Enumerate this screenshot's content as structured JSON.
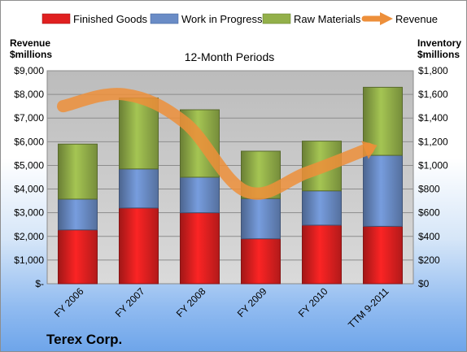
{
  "chart_data": {
    "type": "bar",
    "stacked": true,
    "title": "12-Month Periods",
    "company": "Terex Corp.",
    "left_axis_title": [
      "Revenue",
      "$millions"
    ],
    "right_axis_title": [
      "Inventory",
      "$millions"
    ],
    "categories": [
      "FY 2006",
      "FY 2007",
      "FY 2008",
      "FY 2009",
      "FY 2010",
      "TTM 9-2011"
    ],
    "series": [
      {
        "name": "Finished Goods",
        "axis": "right",
        "color": "#e02020",
        "values": [
          455,
          640,
          600,
          380,
          495,
          485
        ]
      },
      {
        "name": "Work in Progress",
        "axis": "right",
        "color": "#6a8cc6",
        "values": [
          260,
          330,
          300,
          340,
          290,
          600
        ]
      },
      {
        "name": "Raw Materials",
        "axis": "right",
        "color": "#93b04a",
        "values": [
          465,
          600,
          570,
          400,
          420,
          575
        ]
      }
    ],
    "line_series": {
      "name": "Revenue",
      "axis": "left",
      "color": "#ed8f3a",
      "values": [
        7500,
        8000,
        6800,
        3900,
        4700,
        5700
      ]
    },
    "left_ticks": [
      "$-",
      "$1,000",
      "$2,000",
      "$3,000",
      "$4,000",
      "$5,000",
      "$6,000",
      "$7,000",
      "$8,000",
      "$9,000"
    ],
    "right_ticks": [
      "$0",
      "$200",
      "$400",
      "$600",
      "$800",
      "$1,000",
      "$1,200",
      "$1,400",
      "$1,600",
      "$1,800"
    ],
    "left_ylim": [
      0,
      9000
    ],
    "right_ylim": [
      0,
      1800
    ],
    "grid": true,
    "legend_position": "top"
  }
}
